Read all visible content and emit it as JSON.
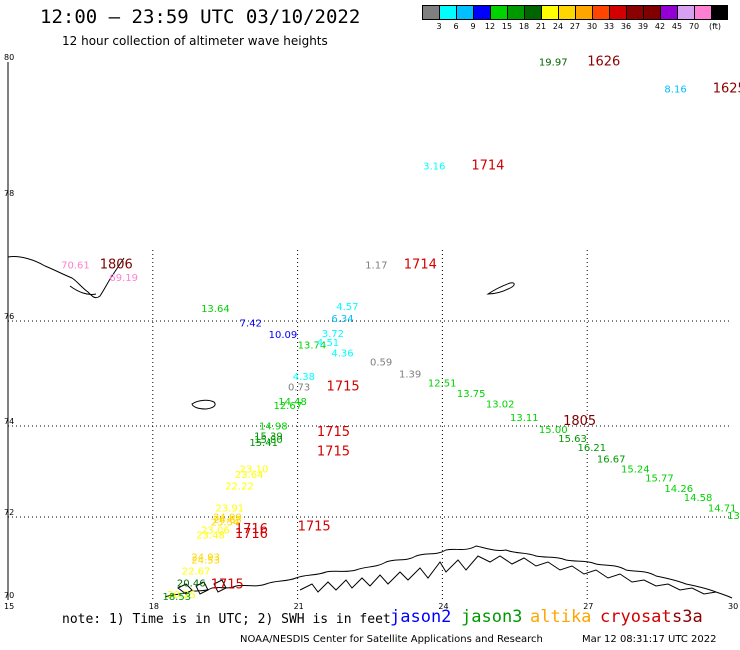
{
  "header": {
    "title": "12:00 — 23:59 UTC 03/10/2022",
    "subtitle": "12 hour collection of altimeter wave heights"
  },
  "scale": {
    "colors": [
      "#7f7f7f",
      "#00ffff",
      "#00bfff",
      "#0000ff",
      "#00d200",
      "#009900",
      "#006400",
      "#ffff00",
      "#ffd700",
      "#ffa500",
      "#ff4500",
      "#d20000",
      "#8b0000",
      "#800000",
      "#9400d3",
      "#d8a0f0",
      "#ff7fd2",
      "#000000"
    ],
    "labels": [
      "3",
      "6",
      "9",
      "12",
      "15",
      "18",
      "21",
      "24",
      "27",
      "30",
      "33",
      "36",
      "39",
      "42",
      "45",
      "70",
      "(ft)"
    ]
  },
  "axes": {
    "lat_labels": [
      "80",
      "78",
      "76",
      "74",
      "72",
      "70"
    ],
    "lon_labels": [
      "15",
      "18",
      "21",
      "24",
      "27",
      "30"
    ]
  },
  "times": [
    {
      "text": "1626",
      "color": "#8b0000",
      "lon": 27.0,
      "lat": 79.95
    },
    {
      "text": "1625",
      "color": "#8b0000",
      "lon": 29.6,
      "lat": 79.55
    },
    {
      "text": "1714",
      "color": "#d20000",
      "lon": 24.6,
      "lat": 78.42
    },
    {
      "text": "1806",
      "color": "#800000",
      "lon": 16.9,
      "lat": 76.85
    },
    {
      "text": "1714",
      "color": "#d20000",
      "lon": 23.2,
      "lat": 76.85
    },
    {
      "text": "1715",
      "color": "#d20000",
      "lon": 21.6,
      "lat": 74.68
    },
    {
      "text": "1715",
      "color": "#d20000",
      "lon": 21.4,
      "lat": 73.78
    },
    {
      "text": "1715",
      "color": "#d20000",
      "lon": 21.4,
      "lat": 73.35
    },
    {
      "text": "1715",
      "color": "#d20000",
      "lon": 21.0,
      "lat": 71.68
    },
    {
      "text": "1805",
      "color": "#800000",
      "lon": 26.5,
      "lat": 74.02
    },
    {
      "text": "1716",
      "color": "#d20000",
      "lon": 19.7,
      "lat": 71.62
    },
    {
      "text": "1716",
      "color": "#d20000",
      "lon": 19.7,
      "lat": 71.5
    },
    {
      "text": "1715",
      "color": "#d20000",
      "lon": 19.2,
      "lat": 70.28
    }
  ],
  "swh": [
    {
      "text": "19.97",
      "color": "#006400",
      "lon": 26.0,
      "lat": 79.95
    },
    {
      "text": "8.16",
      "color": "#00bfff",
      "lon": 28.6,
      "lat": 79.55
    },
    {
      "text": "3.16",
      "color": "#00ffff",
      "lon": 23.6,
      "lat": 78.42
    },
    {
      "text": "70.61",
      "color": "#ff7fd2",
      "lon": 16.1,
      "lat": 76.85
    },
    {
      "text": "69.19",
      "color": "#ff7fd2",
      "lon": 17.1,
      "lat": 76.65
    },
    {
      "text": "1.17",
      "color": "#7f7f7f",
      "lon": 22.4,
      "lat": 76.85
    },
    {
      "text": "13.64",
      "color": "#00d200",
      "lon": 19.0,
      "lat": 76.15
    },
    {
      "text": "4.57",
      "color": "#00ffff",
      "lon": 21.8,
      "lat": 76.18
    },
    {
      "text": "7.42",
      "color": "#0000ff",
      "lon": 19.8,
      "lat": 75.9
    },
    {
      "text": "6.34",
      "color": "#00bfff",
      "lon": 21.7,
      "lat": 75.98
    },
    {
      "text": "10.09",
      "color": "#0000ff",
      "lon": 20.4,
      "lat": 75.68
    },
    {
      "text": "3.72",
      "color": "#00ffff",
      "lon": 21.5,
      "lat": 75.7
    },
    {
      "text": "13.74",
      "color": "#00d200",
      "lon": 21.0,
      "lat": 75.48
    },
    {
      "text": "4.51",
      "color": "#00ffff",
      "lon": 21.4,
      "lat": 75.52
    },
    {
      "text": "4.36",
      "color": "#00ffff",
      "lon": 21.7,
      "lat": 75.32
    },
    {
      "text": "0.59",
      "color": "#7f7f7f",
      "lon": 22.5,
      "lat": 75.15
    },
    {
      "text": "1.39",
      "color": "#7f7f7f",
      "lon": 23.1,
      "lat": 74.92
    },
    {
      "text": "4.38",
      "color": "#00ffff",
      "lon": 20.9,
      "lat": 74.88
    },
    {
      "text": "12.51",
      "color": "#00d200",
      "lon": 23.7,
      "lat": 74.75
    },
    {
      "text": "0.73",
      "color": "#7f7f7f",
      "lon": 20.8,
      "lat": 74.68
    },
    {
      "text": "13.75",
      "color": "#00d200",
      "lon": 24.3,
      "lat": 74.55
    },
    {
      "text": "14.48",
      "color": "#00d200",
      "lon": 20.6,
      "lat": 74.4
    },
    {
      "text": "13.02",
      "color": "#00d200",
      "lon": 24.9,
      "lat": 74.35
    },
    {
      "text": "12.67",
      "color": "#00d200",
      "lon": 20.5,
      "lat": 74.32
    },
    {
      "text": "13.11",
      "color": "#00d200",
      "lon": 25.4,
      "lat": 74.1
    },
    {
      "text": "14.98",
      "color": "#00d200",
      "lon": 20.2,
      "lat": 73.92
    },
    {
      "text": "15.00",
      "color": "#00d200",
      "lon": 26.0,
      "lat": 73.85
    },
    {
      "text": "15.63",
      "color": "#009900",
      "lon": 26.4,
      "lat": 73.65
    },
    {
      "text": "15.39",
      "color": "#009900",
      "lon": 20.1,
      "lat": 73.7
    },
    {
      "text": "15.80",
      "color": "#009900",
      "lon": 20.1,
      "lat": 73.63
    },
    {
      "text": "15.41",
      "color": "#009900",
      "lon": 20.0,
      "lat": 73.56
    },
    {
      "text": "16.21",
      "color": "#009900",
      "lon": 26.8,
      "lat": 73.45
    },
    {
      "text": "16.67",
      "color": "#009900",
      "lon": 27.2,
      "lat": 73.2
    },
    {
      "text": "15.24",
      "color": "#00d200",
      "lon": 27.7,
      "lat": 72.98
    },
    {
      "text": "15.77",
      "color": "#00d200",
      "lon": 28.2,
      "lat": 72.78
    },
    {
      "text": "14.26",
      "color": "#00d200",
      "lon": 28.6,
      "lat": 72.55
    },
    {
      "text": "14.58",
      "color": "#00d200",
      "lon": 29.0,
      "lat": 72.35
    },
    {
      "text": "14.71",
      "color": "#00d200",
      "lon": 29.5,
      "lat": 72.12
    },
    {
      "text": "13",
      "color": "#00d200",
      "lon": 29.9,
      "lat": 71.95
    },
    {
      "text": "23.10",
      "color": "#ffff00",
      "lon": 19.8,
      "lat": 72.98
    },
    {
      "text": "23.64",
      "color": "#ffff00",
      "lon": 19.7,
      "lat": 72.86
    },
    {
      "text": "22.22",
      "color": "#ffff00",
      "lon": 19.5,
      "lat": 72.6
    },
    {
      "text": "23.91",
      "color": "#ffff00",
      "lon": 19.3,
      "lat": 72.12
    },
    {
      "text": "24.99",
      "color": "#ffd700",
      "lon": 19.25,
      "lat": 71.92
    },
    {
      "text": "24.63",
      "color": "#ffd700",
      "lon": 19.25,
      "lat": 71.85
    },
    {
      "text": "23.54",
      "color": "#ffd700",
      "lon": 19.2,
      "lat": 71.8
    },
    {
      "text": "23.06",
      "color": "#ffff00",
      "lon": 19.0,
      "lat": 71.6
    },
    {
      "text": "23.48",
      "color": "#ffff00",
      "lon": 18.9,
      "lat": 71.48
    },
    {
      "text": "24.93",
      "color": "#ffd700",
      "lon": 18.8,
      "lat": 70.95
    },
    {
      "text": "24.53",
      "color": "#ffd700",
      "lon": 18.8,
      "lat": 70.88
    },
    {
      "text": "22.67",
      "color": "#ffff00",
      "lon": 18.6,
      "lat": 70.62
    },
    {
      "text": "20.46",
      "color": "#006400",
      "lon": 18.5,
      "lat": 70.32
    },
    {
      "text": "20.25",
      "color": "#ffff00",
      "lon": 18.3,
      "lat": 70.05
    },
    {
      "text": "18.53",
      "color": "#009900",
      "lon": 18.2,
      "lat": 69.95
    }
  ],
  "footer": {
    "note": "note: 1) Time is in UTC; 2) SWH is in feet",
    "satellites": [
      {
        "name": "jason2",
        "color": "#0000ff"
      },
      {
        "name": "jason3",
        "color": "#009900"
      },
      {
        "name": "altika",
        "color": "#ffa500"
      },
      {
        "name": "cryosat",
        "color": "#d20000"
      },
      {
        "name": "s3a",
        "color": "#8b0000"
      }
    ],
    "credit": "NOAA/NESDIS Center for Satellite Applications and Research",
    "timestamp": "Mar 12 08:31:17 UTC 2022"
  }
}
